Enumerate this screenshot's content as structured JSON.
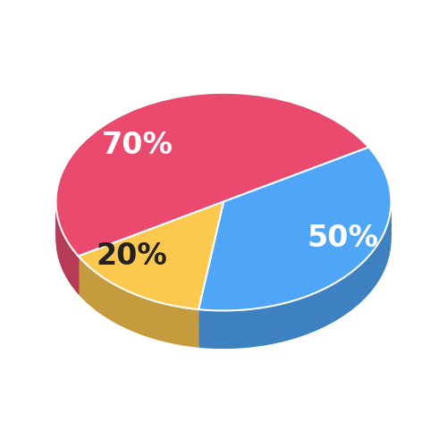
{
  "chart_data": {
    "type": "pie",
    "values": [
      70,
      50,
      20
    ],
    "value_labels": [
      "70%",
      "50%",
      "20%"
    ],
    "colors": [
      "#ea4a6e",
      "#4fa6f7",
      "#fdc84e"
    ],
    "data_labels": true
  }
}
